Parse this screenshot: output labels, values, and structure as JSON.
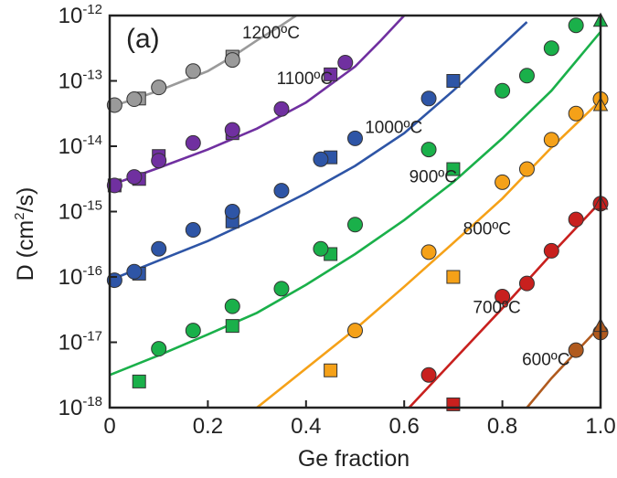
{
  "chart_data": {
    "type": "scatter",
    "panel_label": "(a)",
    "xlabel": "Ge fraction",
    "ylabel_main": "D (cm",
    "ylabel_sup": "2",
    "ylabel_tail": "/s)",
    "xlim": [
      0,
      1.0
    ],
    "ylim": [
      1e-18,
      1e-12
    ],
    "yscale": "log",
    "x_ticks": [
      {
        "value": 0,
        "label": "0"
      },
      {
        "value": 0.2,
        "label": "0.2"
      },
      {
        "value": 0.4,
        "label": "0.4"
      },
      {
        "value": 0.6,
        "label": "0.6"
      },
      {
        "value": 0.8,
        "label": "0.8"
      },
      {
        "value": 1.0,
        "label": "1.0"
      }
    ],
    "y_ticks": [
      {
        "exp": -12,
        "base": "10",
        "sup": "-12"
      },
      {
        "exp": -13,
        "base": "10",
        "sup": "-13"
      },
      {
        "exp": -14,
        "base": "10",
        "sup": "-14"
      },
      {
        "exp": -15,
        "base": "10",
        "sup": "-15"
      },
      {
        "exp": -16,
        "base": "10",
        "sup": "-16"
      },
      {
        "exp": -17,
        "base": "10",
        "sup": "-17"
      },
      {
        "exp": -18,
        "base": "10",
        "sup": "-18"
      }
    ],
    "grid": false,
    "legend": "none",
    "series": [
      {
        "label": "1200ºC",
        "label_at": [
          0.27,
          -12.35
        ],
        "color": "#9a9a9a",
        "curve": [
          [
            0,
            -13.4
          ],
          [
            0.05,
            -13.28
          ],
          [
            0.1,
            -13.15
          ],
          [
            0.15,
            -13.0
          ],
          [
            0.2,
            -12.85
          ],
          [
            0.25,
            -12.63
          ],
          [
            0.3,
            -12.38
          ],
          [
            0.35,
            -12.15
          ],
          [
            0.4,
            -11.9
          ]
        ],
        "circles": [
          [
            0.01,
            -13.37
          ],
          [
            0.05,
            -13.28
          ],
          [
            0.1,
            -13.1
          ],
          [
            0.17,
            -12.85
          ],
          [
            0.25,
            -12.68
          ]
        ],
        "squares": [
          [
            0.06,
            -13.27
          ],
          [
            0.25,
            -12.63
          ]
        ],
        "triangles": []
      },
      {
        "label": "1100ºC",
        "label_at": [
          0.34,
          -13.05
        ],
        "color": "#7030a0",
        "curve": [
          [
            0,
            -14.6
          ],
          [
            0.1,
            -14.33
          ],
          [
            0.2,
            -14.05
          ],
          [
            0.3,
            -13.73
          ],
          [
            0.4,
            -13.33
          ],
          [
            0.5,
            -12.78
          ],
          [
            0.55,
            -12.4
          ],
          [
            0.6,
            -12.0
          ]
        ],
        "circles": [
          [
            0.01,
            -14.6
          ],
          [
            0.05,
            -14.47
          ],
          [
            0.1,
            -14.22
          ],
          [
            0.17,
            -13.95
          ],
          [
            0.25,
            -13.75
          ],
          [
            0.35,
            -13.43
          ],
          [
            0.48,
            -12.72
          ]
        ],
        "squares": [
          [
            0.01,
            -14.6
          ],
          [
            0.06,
            -14.5
          ],
          [
            0.1,
            -14.15
          ],
          [
            0.25,
            -13.8
          ],
          [
            0.45,
            -12.9
          ]
        ],
        "triangles": []
      },
      {
        "label": "1000ºC",
        "label_at": [
          0.52,
          -13.8
        ],
        "color": "#2e55a6",
        "curve": [
          [
            0,
            -16.05
          ],
          [
            0.1,
            -15.75
          ],
          [
            0.2,
            -15.45
          ],
          [
            0.3,
            -15.1
          ],
          [
            0.4,
            -14.72
          ],
          [
            0.5,
            -14.3
          ],
          [
            0.6,
            -13.8
          ],
          [
            0.7,
            -13.15
          ],
          [
            0.8,
            -12.45
          ],
          [
            0.85,
            -12.1
          ]
        ],
        "circles": [
          [
            0.01,
            -16.05
          ],
          [
            0.05,
            -15.92
          ],
          [
            0.1,
            -15.57
          ],
          [
            0.17,
            -15.28
          ],
          [
            0.25,
            -15.0
          ],
          [
            0.35,
            -14.68
          ],
          [
            0.43,
            -14.2
          ],
          [
            0.5,
            -13.88
          ],
          [
            0.65,
            -13.27
          ]
        ],
        "squares": [
          [
            0.06,
            -15.95
          ],
          [
            0.25,
            -15.15
          ],
          [
            0.45,
            -14.17
          ],
          [
            0.7,
            -13.0
          ]
        ],
        "triangles": []
      },
      {
        "label": "900ºC",
        "label_at": [
          0.61,
          -14.55
        ],
        "color": "#1ab04a",
        "curve": [
          [
            0,
            -17.5
          ],
          [
            0.1,
            -17.2
          ],
          [
            0.2,
            -16.88
          ],
          [
            0.3,
            -16.55
          ],
          [
            0.4,
            -16.12
          ],
          [
            0.5,
            -15.65
          ],
          [
            0.6,
            -15.13
          ],
          [
            0.7,
            -14.55
          ],
          [
            0.8,
            -13.88
          ],
          [
            0.9,
            -13.15
          ],
          [
            1.0,
            -12.25
          ]
        ],
        "circles": [
          [
            0.1,
            -17.1
          ],
          [
            0.17,
            -16.82
          ],
          [
            0.25,
            -16.45
          ],
          [
            0.35,
            -16.18
          ],
          [
            0.43,
            -15.57
          ],
          [
            0.5,
            -15.2
          ],
          [
            0.65,
            -14.05
          ],
          [
            0.8,
            -13.15
          ],
          [
            0.85,
            -12.92
          ],
          [
            0.9,
            -12.5
          ],
          [
            0.95,
            -12.15
          ]
        ],
        "squares": [
          [
            0.06,
            -17.6
          ],
          [
            0.25,
            -16.75
          ],
          [
            0.45,
            -15.65
          ],
          [
            0.7,
            -14.35
          ]
        ],
        "triangles": [
          [
            1.0,
            -12.08
          ]
        ]
      },
      {
        "label": "800ºC",
        "label_at": [
          0.72,
          -15.35
        ],
        "color": "#f5a118",
        "curve": [
          [
            0.3,
            -18.0
          ],
          [
            0.4,
            -17.4
          ],
          [
            0.5,
            -16.8
          ],
          [
            0.6,
            -16.15
          ],
          [
            0.7,
            -15.48
          ],
          [
            0.8,
            -14.8
          ],
          [
            0.9,
            -14.02
          ],
          [
            1.0,
            -13.3
          ]
        ],
        "circles": [
          [
            0.5,
            -16.82
          ],
          [
            0.65,
            -15.62
          ],
          [
            0.8,
            -14.55
          ],
          [
            0.85,
            -14.35
          ],
          [
            0.9,
            -13.9
          ],
          [
            0.95,
            -13.5
          ],
          [
            1.0,
            -13.28
          ]
        ],
        "squares": [
          [
            0.45,
            -17.43
          ],
          [
            0.7,
            -16.0
          ]
        ],
        "triangles": [
          [
            1.0,
            -13.37
          ]
        ]
      },
      {
        "label": "700ºC",
        "label_at": [
          0.74,
          -16.55
        ],
        "color": "#c8201e",
        "curve": [
          [
            0.61,
            -18.0
          ],
          [
            0.7,
            -17.28
          ],
          [
            0.8,
            -16.48
          ],
          [
            0.9,
            -15.65
          ],
          [
            1.0,
            -14.85
          ]
        ],
        "circles": [
          [
            0.65,
            -17.5
          ],
          [
            0.8,
            -16.3
          ],
          [
            0.85,
            -16.1
          ],
          [
            0.9,
            -15.6
          ],
          [
            0.95,
            -15.12
          ],
          [
            1.0,
            -14.88
          ]
        ],
        "squares": [
          [
            0.7,
            -17.95
          ]
        ],
        "triangles": [
          [
            1.0,
            -14.88
          ]
        ]
      },
      {
        "label": "600ºC",
        "label_at": [
          0.84,
          -17.35
        ],
        "color": "#b05a1e",
        "curve": [
          [
            0.85,
            -18.0
          ],
          [
            0.9,
            -17.55
          ],
          [
            0.95,
            -17.15
          ],
          [
            1.0,
            -16.75
          ]
        ],
        "circles": [
          [
            0.95,
            -17.12
          ],
          [
            1.0,
            -16.85
          ]
        ],
        "squares": [],
        "triangles": [
          [
            1.0,
            -16.75
          ]
        ]
      }
    ]
  }
}
